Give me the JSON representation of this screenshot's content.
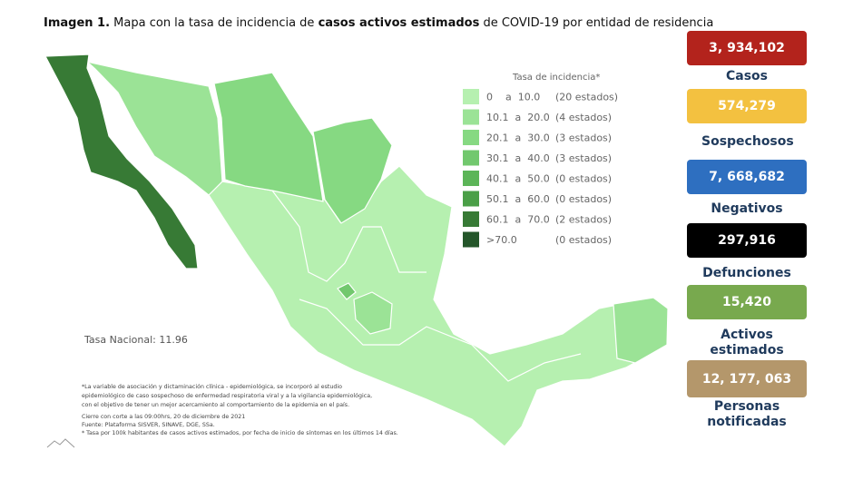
{
  "title": {
    "lead": "Imagen 1.",
    "part1": " Mapa con la tasa de incidencia de ",
    "emphasis": "casos activos estimados",
    "part2": " de COVID-19 por entidad de residencia"
  },
  "legend": {
    "title": "Tasa de incidencia*",
    "items": [
      {
        "range": "0    a  10.0",
        "count": "(20 estados)",
        "color": "#b6f0b0"
      },
      {
        "range": "10.1  a  20.0",
        "count": "(4 estados)",
        "color": "#9be396"
      },
      {
        "range": "20.1  a  30.0",
        "count": "(3 estados)",
        "color": "#86d982"
      },
      {
        "range": "30.1  a  40.0",
        "count": "(3 estados)",
        "color": "#72c86e"
      },
      {
        "range": "40.1  a  50.0",
        "count": "(0 estados)",
        "color": "#5cb558"
      },
      {
        "range": "50.1  a  60.0",
        "count": "(0 estados)",
        "color": "#4a9f47"
      },
      {
        "range": "60.1  a  70.0",
        "count": "(2 estados)",
        "color": "#377a35"
      },
      {
        "range": ">70.0",
        "count": "(0 estados)",
        "color": "#24562a"
      }
    ]
  },
  "national_rate": "Tasa Nacional: 11.96",
  "notes": [
    "*La variable de asociación y dictaminación clínica - epidemiológica, se incorporó al estudio",
    "epidemiológico de caso sospechoso de enfermedad respiratoria viral y a la vigilancia epidemiológica,",
    "con el objetivo de tener un mejor acercamiento al comportamiento de la epidemia en el país.",
    "Cierre con corte a las 09:00hrs, 20 de diciembre de 2021",
    "Fuente: Plataforma SISVER, SINAVE, DGE, SSa.",
    "* Tasa por 100k habitantes de casos activos estimados, por fecha de inicio de síntomas en los últimos 14 días."
  ],
  "stats": [
    {
      "value": "3, 934,102",
      "label": "Casos",
      "color": "#b3231c"
    },
    {
      "value": "574,279",
      "label": "Sospechosos",
      "color": "#f3c140"
    },
    {
      "value": "7, 668,682",
      "label": "Negativos",
      "color": "#2e6fc0"
    },
    {
      "value": "297,916",
      "label": "Defunciones",
      "color": "#000000"
    },
    {
      "value": "15,420",
      "label": "Activos estimados",
      "color": "#78a94e"
    },
    {
      "value": "12, 177, 063",
      "label": "Personas notificadas",
      "color": "#b4976b"
    }
  ]
}
